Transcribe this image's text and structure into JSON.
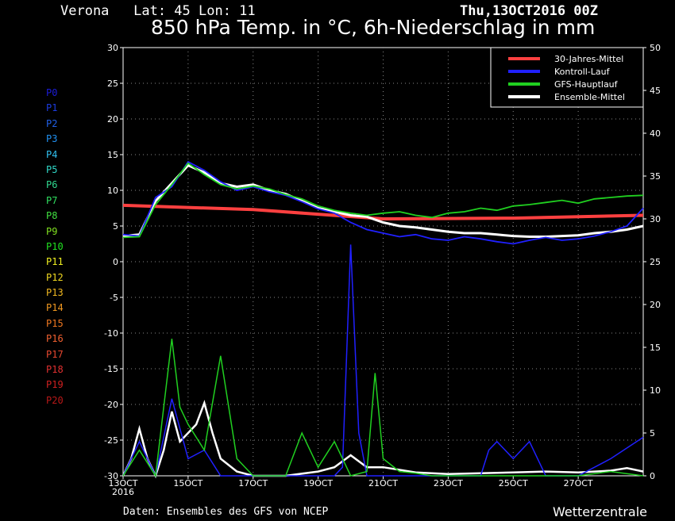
{
  "header": {
    "location": "Verona   Lat: 45 Lon: 11",
    "date": "Thu,13OCT2016 00Z",
    "title": "850 hPa Temp. in °C, 6h-Niederschlag in mm"
  },
  "footer": {
    "source": "Daten: Ensembles des GFS von NCEP",
    "brand": "Wetterzentrale"
  },
  "members": [
    {
      "label": "P0",
      "color": "#1c1cd8"
    },
    {
      "label": "P1",
      "color": "#1c3ce0"
    },
    {
      "label": "P2",
      "color": "#2060e8"
    },
    {
      "label": "P3",
      "color": "#2090f0"
    },
    {
      "label": "P4",
      "color": "#30c0f0"
    },
    {
      "label": "P5",
      "color": "#30d8c8"
    },
    {
      "label": "P6",
      "color": "#30d890"
    },
    {
      "label": "P7",
      "color": "#30e060"
    },
    {
      "label": "P8",
      "color": "#40e040"
    },
    {
      "label": "P9",
      "color": "#80e020"
    },
    {
      "label": "P10",
      "color": "#20e020"
    },
    {
      "label": "P11",
      "color": "#f0f020"
    },
    {
      "label": "P12",
      "color": "#f0d820"
    },
    {
      "label": "P13",
      "color": "#f0b820"
    },
    {
      "label": "P14",
      "color": "#f09820"
    },
    {
      "label": "P15",
      "color": "#f07820"
    },
    {
      "label": "P16",
      "color": "#f06030"
    },
    {
      "label": "P17",
      "color": "#e84830"
    },
    {
      "label": "P18",
      "color": "#e03030"
    },
    {
      "label": "P19",
      "color": "#d02020"
    },
    {
      "label": "P20",
      "color": "#b81818"
    }
  ],
  "chart_data": {
    "type": "line",
    "title": "850 hPa Temp. in °C, 6h-Niederschlag in mm",
    "x_tick_labels": [
      "13OCT",
      "15OCT",
      "17OCT",
      "19OCT",
      "21OCT",
      "23OCT",
      "25OCT",
      "27OCT"
    ],
    "x_year_label": "2016",
    "x_range_days": [
      13,
      29
    ],
    "y_left": {
      "unit": "°C",
      "range": [
        -30,
        30
      ],
      "ticks": [
        30,
        25,
        20,
        15,
        10,
        5,
        0,
        -5,
        -10,
        -15,
        -20,
        -25,
        -30
      ]
    },
    "y_right": {
      "unit": "mm",
      "range": [
        0,
        50
      ],
      "ticks": [
        50,
        45,
        40,
        35,
        30,
        25,
        20,
        15,
        10,
        5,
        0
      ]
    },
    "grid": true,
    "legend": {
      "placement": "top-right",
      "entries": [
        {
          "name": "30-Jahres-Mittel",
          "color": "#ff4040"
        },
        {
          "name": "Kontroll-Lauf",
          "color": "#2020ff"
        },
        {
          "name": "GFS-Hauptlauf",
          "color": "#20d020"
        },
        {
          "name": "Ensemble-Mittel",
          "color": "#ffffff"
        }
      ]
    },
    "temperature_series": [
      {
        "name": "30-Jahres-Mittel",
        "color": "#ff4040",
        "x": [
          13,
          17,
          21,
          25,
          29
        ],
        "y": [
          7.9,
          7.3,
          6.0,
          6.1,
          6.5
        ]
      },
      {
        "name": "Ensemble-Mittel",
        "color": "#ffffff",
        "x": [
          13,
          13.5,
          14,
          14.5,
          15,
          15.5,
          16,
          16.5,
          17,
          17.5,
          18,
          18.5,
          19,
          19.5,
          20,
          20.5,
          21,
          21.5,
          22,
          22.5,
          23,
          23.5,
          24,
          24.5,
          25,
          25.5,
          26,
          26.5,
          27,
          27.5,
          28,
          28.5,
          29
        ],
        "y": [
          3.6,
          3.8,
          8.5,
          11,
          13.5,
          12.5,
          11,
          10.5,
          10.8,
          10,
          9.5,
          8.5,
          7.5,
          7,
          6.5,
          6.3,
          5.5,
          5,
          4.8,
          4.5,
          4.2,
          4,
          4,
          3.8,
          3.6,
          3.5,
          3.5,
          3.6,
          3.7,
          4,
          4.2,
          4.5,
          5
        ]
      },
      {
        "name": "Kontroll-Lauf",
        "color": "#2020ff",
        "x": [
          13,
          13.5,
          14,
          14.5,
          15,
          15.5,
          16,
          16.5,
          17,
          17.5,
          18,
          18.5,
          19,
          19.5,
          20,
          20.5,
          21,
          21.5,
          22,
          22.5,
          23,
          23.5,
          24,
          24.5,
          25,
          25.5,
          26,
          26.5,
          27,
          27.5,
          28,
          28.5,
          29
        ],
        "y": [
          3.8,
          3.6,
          9,
          10.5,
          14,
          12.8,
          11.2,
          10,
          10.5,
          9.8,
          9.3,
          8.4,
          7.4,
          6.8,
          5.5,
          4.5,
          4,
          3.5,
          3.8,
          3.2,
          3,
          3.5,
          3.2,
          2.8,
          2.5,
          3,
          3.4,
          3,
          3.2,
          3.6,
          4.2,
          5,
          7.5
        ]
      },
      {
        "name": "GFS-Hauptlauf",
        "color": "#20d020",
        "x": [
          13,
          13.5,
          14,
          14.5,
          15,
          15.5,
          16,
          16.5,
          17,
          17.5,
          18,
          18.5,
          19,
          19.5,
          20,
          20.5,
          21,
          21.5,
          22,
          22.5,
          23,
          23.5,
          24,
          24.5,
          25,
          25.5,
          26,
          26.5,
          27,
          27.5,
          28,
          28.5,
          29
        ],
        "y": [
          3.4,
          3.5,
          8,
          10.8,
          13.8,
          12.2,
          10.8,
          10.2,
          10.6,
          10.2,
          9.4,
          8.8,
          7.8,
          7.2,
          6.8,
          6.5,
          6.8,
          7,
          6.5,
          6.2,
          6.8,
          7,
          7.5,
          7.2,
          7.8,
          8,
          8.3,
          8.6,
          8.2,
          8.8,
          9,
          9.2,
          9.3
        ]
      }
    ],
    "precipitation_series": [
      {
        "name": "Ensemble-Mittel",
        "color": "#ffffff",
        "x": [
          13,
          13.25,
          13.5,
          13.75,
          14,
          14.25,
          14.5,
          14.75,
          15,
          15.25,
          15.5,
          15.75,
          16,
          16.5,
          17,
          18,
          19,
          19.5,
          20,
          20.5,
          21,
          22,
          23,
          24,
          25,
          26,
          27,
          28,
          28.5,
          29
        ],
        "y": [
          0,
          2,
          5.5,
          2,
          0,
          3,
          7.5,
          4,
          5,
          6,
          8.5,
          5,
          2,
          0.5,
          0,
          0,
          0.5,
          1,
          2.4,
          1,
          1,
          0.4,
          0.2,
          0.3,
          0.4,
          0.5,
          0.4,
          0.6,
          0.9,
          0.5
        ]
      },
      {
        "name": "Kontroll-Lauf",
        "color": "#2020ff",
        "x": [
          13,
          13.5,
          14,
          14.5,
          15,
          15.5,
          16,
          17,
          19,
          19.5,
          19.75,
          20,
          20.25,
          20.5,
          21,
          23,
          24,
          24.25,
          24.5,
          25,
          25.25,
          25.5,
          26,
          27,
          28,
          29
        ],
        "y": [
          0,
          4,
          0,
          9,
          2,
          3,
          0,
          0,
          0,
          0,
          1,
          27,
          5,
          0,
          0,
          0,
          0,
          3,
          4,
          2,
          3,
          4,
          0,
          0,
          2,
          4.5
        ]
      },
      {
        "name": "GFS-Hauptlauf",
        "color": "#20d020",
        "x": [
          13,
          13.5,
          14,
          14.5,
          14.75,
          15,
          15.5,
          16,
          16.5,
          17,
          18,
          18.5,
          19,
          19.5,
          20,
          20.5,
          20.75,
          21,
          21.5,
          22,
          22.5,
          23,
          24,
          25,
          26,
          27,
          28,
          29
        ],
        "y": [
          0,
          3,
          0,
          16,
          8,
          6,
          3,
          14,
          2,
          0,
          0,
          5,
          1,
          4,
          0,
          0.5,
          12,
          2,
          0.5,
          0.3,
          0,
          0,
          0,
          0,
          0,
          0,
          0.5,
          0
        ]
      }
    ]
  }
}
